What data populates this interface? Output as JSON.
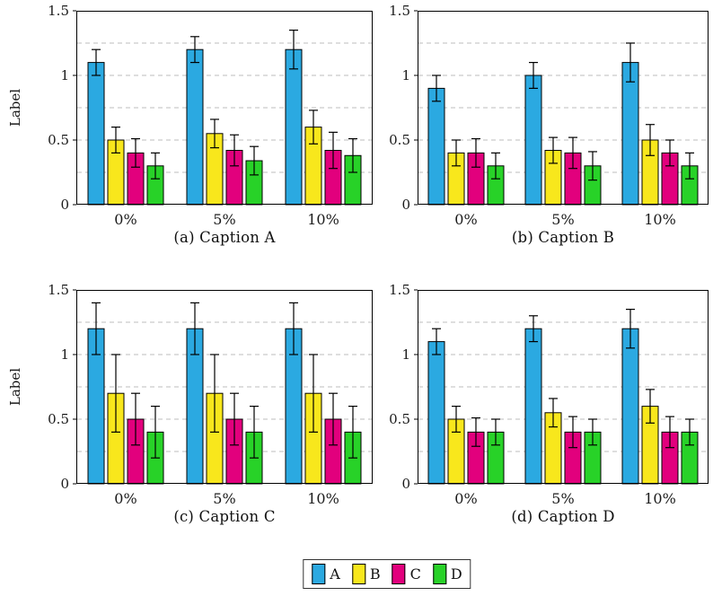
{
  "figure": {
    "background": "#ffffff",
    "axis_color": "#000000",
    "grid_color": "#bcbcbc",
    "text_color": "#1a1a1a"
  },
  "legend": {
    "items": [
      {
        "label": "A",
        "color": "#2ba9e1"
      },
      {
        "label": "B",
        "color": "#f8e71c"
      },
      {
        "label": "C",
        "color": "#e2007d"
      },
      {
        "label": "D",
        "color": "#28d228"
      }
    ]
  },
  "chart_data": [
    {
      "id": "a",
      "type": "bar",
      "title": "(a) Caption A",
      "xlabel": "",
      "ylabel": "Label",
      "ylim": [
        0,
        1.5
      ],
      "yticks": [
        {
          "v": 0,
          "label": "0"
        },
        {
          "v": 0.5,
          "label": "0.5"
        },
        {
          "v": 1,
          "label": "1"
        },
        {
          "v": 1.5,
          "label": "1.5"
        }
      ],
      "gridlines": [
        0.25,
        0.5,
        0.75,
        1.0,
        1.25
      ],
      "grid": "dashed",
      "categories": [
        "0%",
        "5%",
        "10%"
      ],
      "series": [
        {
          "name": "A",
          "color": "#2ba9e1",
          "values": [
            1.1,
            1.2,
            1.2
          ],
          "errors": [
            0.1,
            0.1,
            0.15
          ]
        },
        {
          "name": "B",
          "color": "#f8e71c",
          "values": [
            0.5,
            0.55,
            0.6
          ],
          "errors": [
            0.1,
            0.11,
            0.13
          ]
        },
        {
          "name": "C",
          "color": "#e2007d",
          "values": [
            0.4,
            0.42,
            0.42
          ],
          "errors": [
            0.11,
            0.12,
            0.14
          ]
        },
        {
          "name": "D",
          "color": "#28d228",
          "values": [
            0.3,
            0.34,
            0.38
          ],
          "errors": [
            0.1,
            0.11,
            0.13
          ]
        }
      ]
    },
    {
      "id": "b",
      "type": "bar",
      "title": "(b) Caption B",
      "xlabel": "",
      "ylabel": "",
      "ylim": [
        0,
        1.5
      ],
      "yticks": [
        {
          "v": 0,
          "label": "0"
        },
        {
          "v": 0.5,
          "label": "0.5"
        },
        {
          "v": 1,
          "label": "1"
        },
        {
          "v": 1.5,
          "label": "1.5"
        }
      ],
      "gridlines": [
        0.25,
        0.5,
        0.75,
        1.0,
        1.25
      ],
      "grid": "dashed",
      "categories": [
        "0%",
        "5%",
        "10%"
      ],
      "series": [
        {
          "name": "A",
          "color": "#2ba9e1",
          "values": [
            0.9,
            1.0,
            1.1
          ],
          "errors": [
            0.1,
            0.1,
            0.15
          ]
        },
        {
          "name": "B",
          "color": "#f8e71c",
          "values": [
            0.4,
            0.42,
            0.5
          ],
          "errors": [
            0.1,
            0.1,
            0.12
          ]
        },
        {
          "name": "C",
          "color": "#e2007d",
          "values": [
            0.4,
            0.4,
            0.4
          ],
          "errors": [
            0.11,
            0.12,
            0.1
          ]
        },
        {
          "name": "D",
          "color": "#28d228",
          "values": [
            0.3,
            0.3,
            0.3
          ],
          "errors": [
            0.1,
            0.11,
            0.1
          ]
        }
      ]
    },
    {
      "id": "c",
      "type": "bar",
      "title": "(c) Caption C",
      "xlabel": "",
      "ylabel": "Label",
      "ylim": [
        0,
        1.5
      ],
      "yticks": [
        {
          "v": 0,
          "label": "0"
        },
        {
          "v": 0.5,
          "label": "0.5"
        },
        {
          "v": 1,
          "label": "1"
        },
        {
          "v": 1.5,
          "label": "1.5"
        }
      ],
      "gridlines": [
        0.25,
        0.5,
        0.75,
        1.0,
        1.25
      ],
      "grid": "dashed",
      "categories": [
        "0%",
        "5%",
        "10%"
      ],
      "series": [
        {
          "name": "A",
          "color": "#2ba9e1",
          "values": [
            1.2,
            1.2,
            1.2
          ],
          "errors": [
            0.2,
            0.2,
            0.2
          ]
        },
        {
          "name": "B",
          "color": "#f8e71c",
          "values": [
            0.7,
            0.7,
            0.7
          ],
          "errors": [
            0.3,
            0.3,
            0.3
          ]
        },
        {
          "name": "C",
          "color": "#e2007d",
          "values": [
            0.5,
            0.5,
            0.5
          ],
          "errors": [
            0.2,
            0.2,
            0.2
          ]
        },
        {
          "name": "D",
          "color": "#28d228",
          "values": [
            0.4,
            0.4,
            0.4
          ],
          "errors": [
            0.2,
            0.2,
            0.2
          ]
        }
      ]
    },
    {
      "id": "d",
      "type": "bar",
      "title": "(d) Caption D",
      "xlabel": "",
      "ylabel": "",
      "ylim": [
        0,
        1.5
      ],
      "yticks": [
        {
          "v": 0,
          "label": "0"
        },
        {
          "v": 0.5,
          "label": "0.5"
        },
        {
          "v": 1,
          "label": "1"
        },
        {
          "v": 1.5,
          "label": "1.5"
        }
      ],
      "gridlines": [
        0.25,
        0.5,
        0.75,
        1.0,
        1.25
      ],
      "grid": "dashed",
      "categories": [
        "0%",
        "5%",
        "10%"
      ],
      "series": [
        {
          "name": "A",
          "color": "#2ba9e1",
          "values": [
            1.1,
            1.2,
            1.2
          ],
          "errors": [
            0.1,
            0.1,
            0.15
          ]
        },
        {
          "name": "B",
          "color": "#f8e71c",
          "values": [
            0.5,
            0.55,
            0.6
          ],
          "errors": [
            0.1,
            0.11,
            0.13
          ]
        },
        {
          "name": "C",
          "color": "#e2007d",
          "values": [
            0.4,
            0.4,
            0.4
          ],
          "errors": [
            0.11,
            0.12,
            0.12
          ]
        },
        {
          "name": "D",
          "color": "#28d228",
          "values": [
            0.4,
            0.4,
            0.4
          ],
          "errors": [
            0.1,
            0.1,
            0.1
          ]
        }
      ]
    }
  ]
}
